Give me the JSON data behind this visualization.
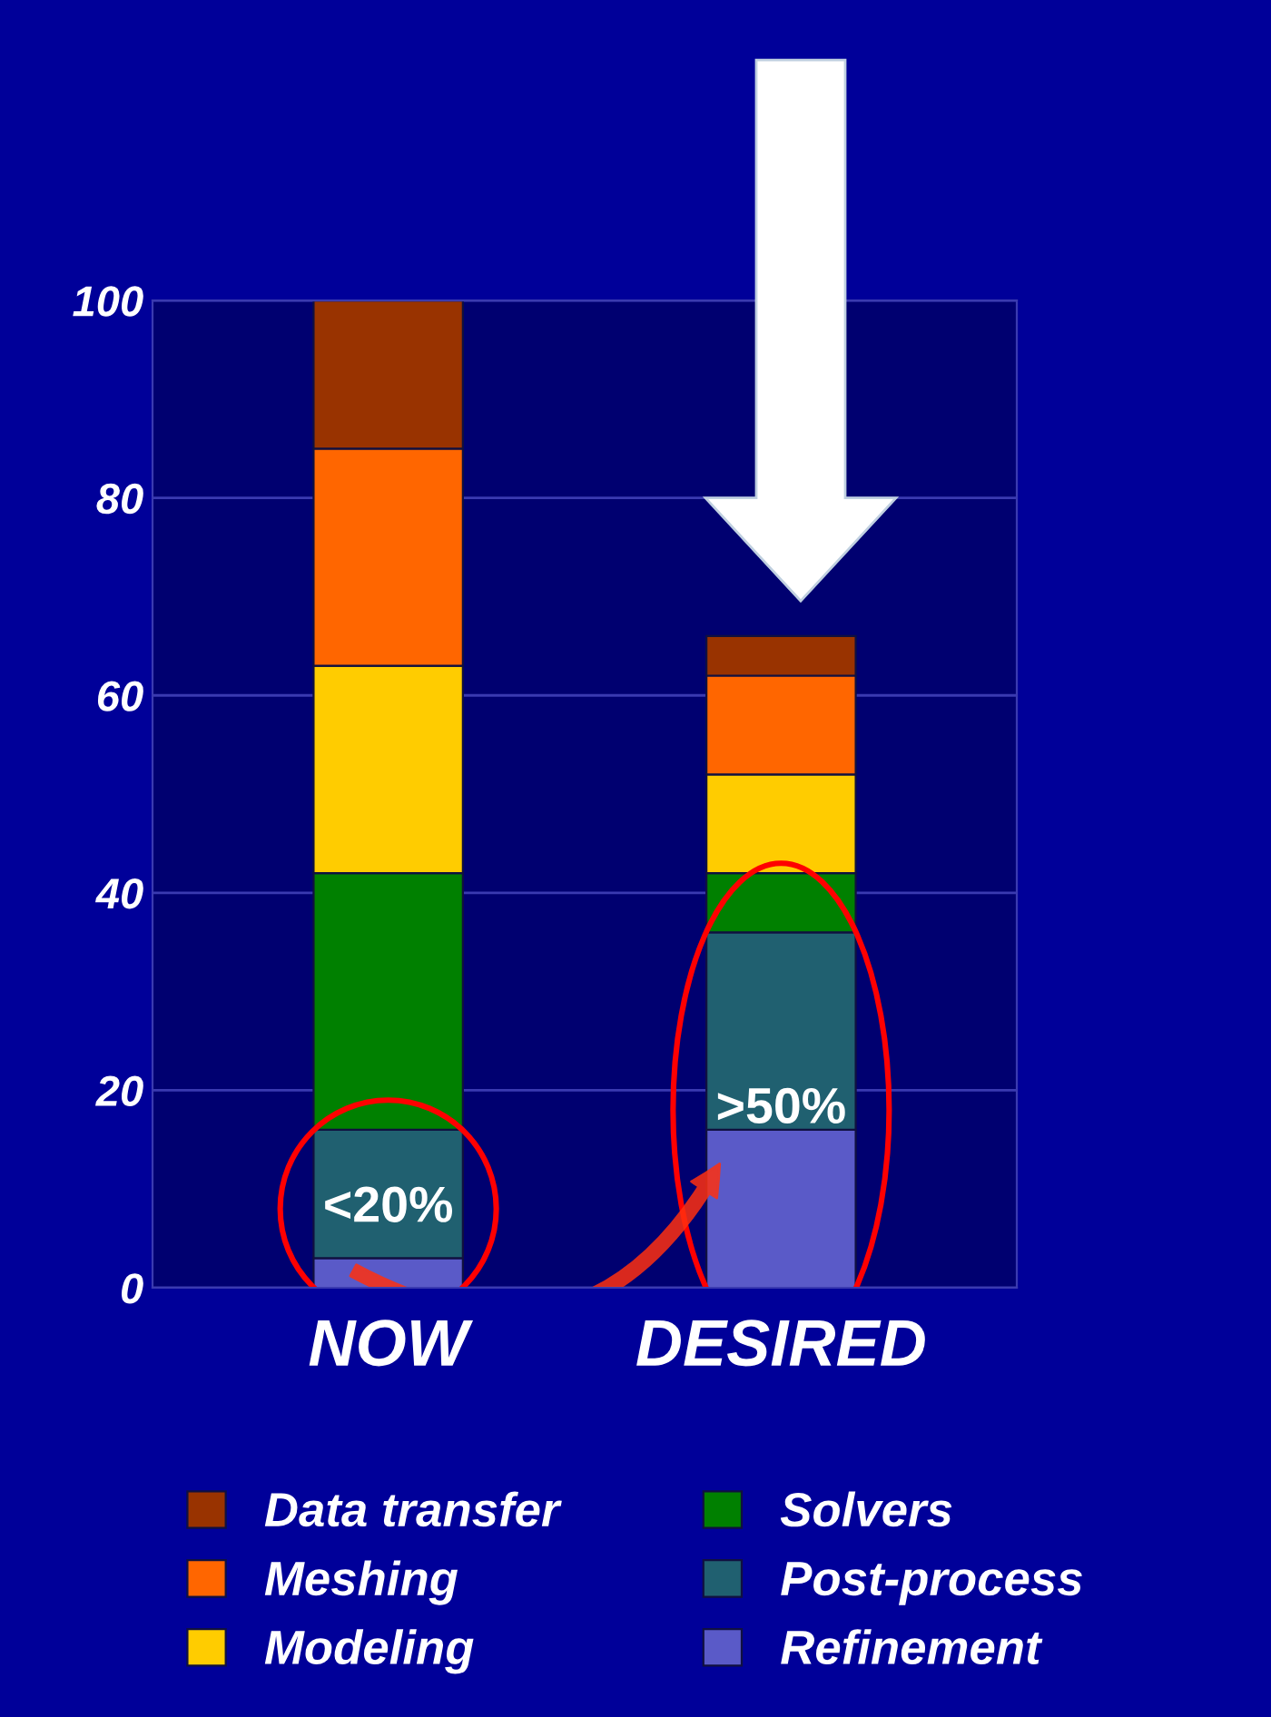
{
  "chart_data": {
    "type": "bar",
    "stacked": true,
    "categories": [
      "NOW",
      "DESIRED"
    ],
    "series": [
      {
        "name": "Refinement",
        "color": "#5a5ac8",
        "values": [
          3,
          16
        ]
      },
      {
        "name": "Post-process",
        "color": "#206070",
        "values": [
          13,
          20
        ]
      },
      {
        "name": "Solvers",
        "color": "#008000",
        "values": [
          26,
          6
        ]
      },
      {
        "name": "Modeling",
        "color": "#ffcc00",
        "values": [
          21,
          10
        ]
      },
      {
        "name": "Meshing",
        "color": "#ff6600",
        "values": [
          22,
          10
        ]
      },
      {
        "name": "Data transfer",
        "color": "#993300",
        "values": [
          15,
          4
        ]
      }
    ],
    "ylim": [
      0,
      100
    ],
    "yticks": [
      0,
      20,
      40,
      60,
      80,
      100
    ],
    "grid": "y",
    "legend": "bottom",
    "annotations": [
      "<20%",
      ">50%"
    ]
  }
}
